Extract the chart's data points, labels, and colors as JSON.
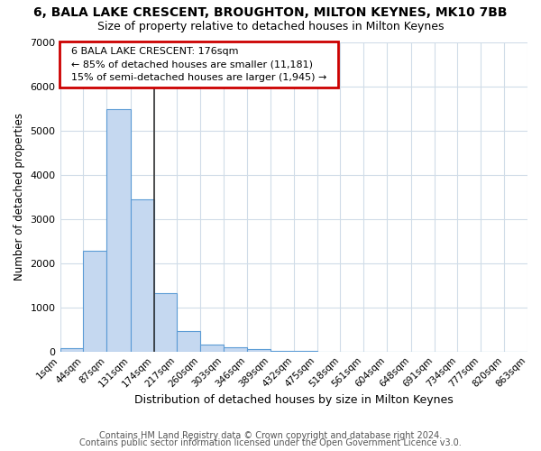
{
  "title": "6, BALA LAKE CRESCENT, BROUGHTON, MILTON KEYNES, MK10 7BB",
  "subtitle": "Size of property relative to detached houses in Milton Keynes",
  "xlabel": "Distribution of detached houses by size in Milton Keynes",
  "ylabel": "Number of detached properties",
  "footer_line1": "Contains HM Land Registry data © Crown copyright and database right 2024.",
  "footer_line2": "Contains public sector information licensed under the Open Government Licence v3.0.",
  "annotation_line1": "6 BALA LAKE CRESCENT: 176sqm",
  "annotation_line2": "← 85% of detached houses are smaller (11,181)",
  "annotation_line3": "15% of semi-detached houses are larger (1,945) →",
  "property_size_bin": 174,
  "bar_color": "#c5d8f0",
  "bar_edge_color": "#5b9bd5",
  "vline_color": "#333333",
  "annotation_box_color": "#ffffff",
  "annotation_box_edge": "#cc0000",
  "background_color": "#ffffff",
  "grid_color": "#d0dce8",
  "bin_edges": [
    1,
    44,
    87,
    131,
    174,
    217,
    260,
    303,
    346,
    389,
    432,
    475,
    518,
    561,
    604,
    648,
    691,
    734,
    777,
    820,
    863
  ],
  "bin_counts": [
    75,
    2270,
    5480,
    3450,
    1310,
    470,
    165,
    90,
    55,
    10,
    5,
    0,
    0,
    0,
    0,
    0,
    0,
    0,
    0,
    0
  ],
  "ylim": [
    0,
    7000
  ],
  "yticks": [
    0,
    1000,
    2000,
    3000,
    4000,
    5000,
    6000,
    7000
  ]
}
